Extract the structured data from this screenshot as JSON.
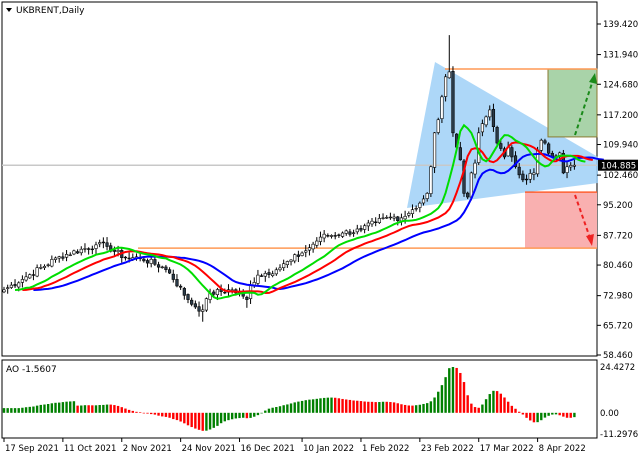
{
  "header": {
    "symbol_title": "UKBRENT,Daily",
    "menu_icon": "triangle-down-icon"
  },
  "indicator_panel": {
    "label": "AO -1.5607"
  },
  "current_price": "104.885",
  "colors": {
    "up_candle": "#ffffff",
    "down_candle": "#000000",
    "jaw": "#0000ff",
    "teeth": "#ff0000",
    "lips": "#00dd00",
    "ao_up": "#008000",
    "ao_down": "#ff0000",
    "triangle": "#9fd0f7",
    "level_line": "#ff9955",
    "target_up_box": "#a9d3a9",
    "target_down_box": "#f9b0b0",
    "arrow_up": "#1a8a1a",
    "arrow_down": "#ee2222"
  },
  "chart_data": {
    "type": "candlestick",
    "title": "UKBRENT,Daily",
    "price_axis": {
      "range": [
        58.46,
        139.42
      ],
      "labels": [
        "139.420",
        "131.940",
        "124.680",
        "117.200",
        "109.940",
        "102.460",
        "95.200",
        "87.720",
        "80.460",
        "72.980",
        "65.720",
        "58.460"
      ]
    },
    "ao_axis": {
      "range": [
        -11.2976,
        24.4272
      ],
      "labels": [
        "24.4272",
        "0.00",
        "-11.2976"
      ]
    },
    "date_ticks": [
      {
        "label": "17 Sep 2021",
        "date": "2021-09-17"
      },
      {
        "label": "11 Oct 2021",
        "date": "2021-10-11"
      },
      {
        "label": "2 Nov 2021",
        "date": "2021-11-02"
      },
      {
        "label": "24 Nov 2021",
        "date": "2021-11-24"
      },
      {
        "label": "16 Dec 2021",
        "date": "2021-12-16"
      },
      {
        "label": "10 Jan 2022",
        "date": "2022-01-10"
      },
      {
        "label": "1 Feb 2022",
        "date": "2022-02-01"
      },
      {
        "label": "23 Feb 2022",
        "date": "2022-02-23"
      },
      {
        "label": "17 Mar 2022",
        "date": "2022-03-17"
      },
      {
        "label": "8 Apr 2022",
        "date": "2022-04-08"
      }
    ],
    "closes": [
      {
        "d": "2021-09-17",
        "c": 74.4
      },
      {
        "d": "2021-09-28",
        "c": 78.1
      },
      {
        "d": "2021-10-08",
        "c": 82.5
      },
      {
        "d": "2021-10-22",
        "c": 85.4
      },
      {
        "d": "2021-10-27",
        "c": 85.0
      },
      {
        "d": "2021-11-03",
        "c": 82.2
      },
      {
        "d": "2021-11-09",
        "c": 82.2
      },
      {
        "d": "2021-11-17",
        "c": 80.0
      },
      {
        "d": "2021-11-19",
        "c": 78.5
      },
      {
        "d": "2021-11-26",
        "c": 72.0
      },
      {
        "d": "2021-11-30",
        "c": 70.2
      },
      {
        "d": "2021-12-02",
        "c": 69.5,
        "l": 66.6
      },
      {
        "d": "2021-12-06",
        "c": 73.6
      },
      {
        "d": "2021-12-14",
        "c": 74.4
      },
      {
        "d": "2021-12-20",
        "c": 72.0,
        "l": 70.0
      },
      {
        "d": "2021-12-21",
        "c": 75.6
      },
      {
        "d": "2021-12-23",
        "c": 78.0
      },
      {
        "d": "2021-12-30",
        "c": 79.3
      },
      {
        "d": "2022-01-05",
        "c": 81.7
      },
      {
        "d": "2022-01-10",
        "c": 83.4
      },
      {
        "d": "2022-01-12",
        "c": 84.7
      },
      {
        "d": "2022-01-17",
        "c": 87.3
      },
      {
        "d": "2022-01-25",
        "c": 88.3
      },
      {
        "d": "2022-02-01",
        "c": 89.0
      },
      {
        "d": "2022-02-07",
        "c": 91.0
      },
      {
        "d": "2022-02-11",
        "c": 92.2
      },
      {
        "d": "2022-02-16",
        "c": 92.0
      },
      {
        "d": "2022-02-21",
        "c": 94.0
      },
      {
        "d": "2022-02-23",
        "c": 95.6
      },
      {
        "d": "2022-02-25",
        "c": 98.0
      },
      {
        "d": "2022-02-28",
        "c": 104.5
      },
      {
        "d": "2022-03-01",
        "c": 112.8
      },
      {
        "d": "2022-03-02",
        "c": 116.0
      },
      {
        "d": "2022-03-03",
        "c": 121.6
      },
      {
        "d": "2022-03-04",
        "c": 126.5
      },
      {
        "d": "2022-03-07",
        "c": 127.7,
        "h": 136.7
      },
      {
        "d": "2022-03-08",
        "c": 112.8
      },
      {
        "d": "2022-03-09",
        "c": 109.3
      },
      {
        "d": "2022-03-10",
        "c": 106.2
      },
      {
        "d": "2022-03-11",
        "c": 98.0
      },
      {
        "d": "2022-03-14",
        "c": 97.1
      },
      {
        "d": "2022-03-15",
        "c": 103.0
      },
      {
        "d": "2022-03-16",
        "c": 105.4
      },
      {
        "d": "2022-03-17",
        "c": 112.8
      },
      {
        "d": "2022-03-21",
        "c": 116.7
      },
      {
        "d": "2022-03-22",
        "c": 118.4
      },
      {
        "d": "2022-03-23",
        "c": 114.3
      },
      {
        "d": "2022-03-24",
        "c": 110.3
      },
      {
        "d": "2022-03-28",
        "c": 106.9
      },
      {
        "d": "2022-03-29",
        "c": 109.3
      },
      {
        "d": "2022-03-30",
        "c": 106.9
      },
      {
        "d": "2022-03-31",
        "c": 104.5
      },
      {
        "d": "2022-04-04",
        "c": 101.3
      },
      {
        "d": "2022-04-05",
        "c": 101.3
      },
      {
        "d": "2022-04-07",
        "c": 103.0
      },
      {
        "d": "2022-04-08",
        "c": 108.6
      },
      {
        "d": "2022-04-11",
        "c": 111.0
      },
      {
        "d": "2022-04-12",
        "c": 110.3
      },
      {
        "d": "2022-04-14",
        "c": 106.9
      },
      {
        "d": "2022-04-18",
        "c": 107.9
      },
      {
        "d": "2022-04-19",
        "c": 103.0
      },
      {
        "d": "2022-04-20",
        "c": 104.5
      },
      {
        "d": "2022-04-22",
        "c": 104.885
      }
    ],
    "levels": {
      "resistance": 128.4,
      "support": 84.6,
      "range_high": 111.8,
      "range_low": 98.3
    }
  }
}
